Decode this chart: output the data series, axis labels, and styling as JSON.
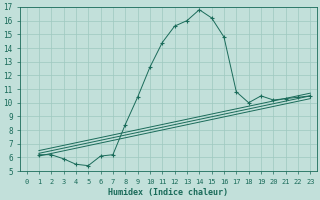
{
  "xlabel": "Humidex (Indice chaleur)",
  "bg_color": "#c2e0da",
  "grid_color": "#9ec8c0",
  "line_color": "#1a6b5a",
  "xlim": [
    -0.5,
    23.5
  ],
  "ylim": [
    5,
    17
  ],
  "x_ticks": [
    0,
    1,
    2,
    3,
    4,
    5,
    6,
    7,
    8,
    9,
    10,
    11,
    12,
    13,
    14,
    15,
    16,
    17,
    18,
    19,
    20,
    21,
    22,
    23
  ],
  "y_ticks": [
    5,
    6,
    7,
    8,
    9,
    10,
    11,
    12,
    13,
    14,
    15,
    16,
    17
  ],
  "line1_x": [
    1,
    2,
    3,
    4,
    5,
    6,
    7,
    8,
    9,
    10,
    11,
    12,
    13,
    14,
    15,
    16,
    17,
    18,
    19,
    20,
    21,
    22,
    23
  ],
  "line1_y": [
    6.2,
    6.2,
    5.9,
    5.5,
    5.4,
    6.1,
    6.2,
    8.4,
    10.4,
    12.6,
    14.4,
    15.6,
    16.0,
    16.8,
    16.2,
    14.8,
    10.8,
    10.0,
    10.5,
    10.2,
    10.3,
    10.4,
    10.5
  ],
  "line2_x": [
    1,
    23
  ],
  "line2_y": [
    6.1,
    10.3
  ],
  "line3_x": [
    1,
    23
  ],
  "line3_y": [
    6.3,
    10.5
  ],
  "line4_x": [
    1,
    23
  ],
  "line4_y": [
    6.5,
    10.7
  ]
}
